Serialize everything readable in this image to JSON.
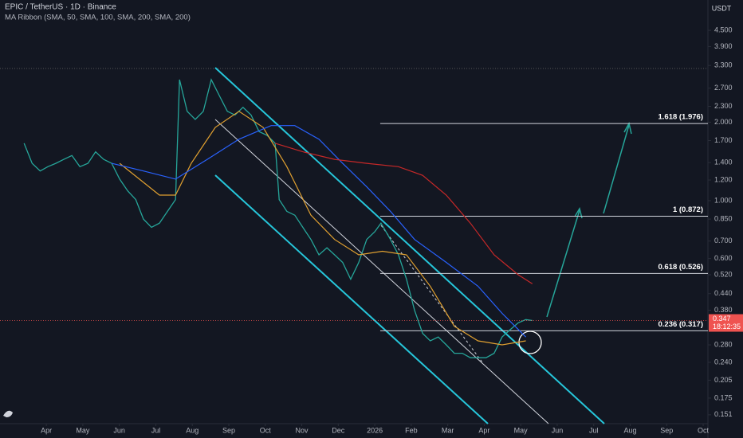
{
  "chart_data": {
    "type": "line",
    "title": "EPIC / TetherUS · 1D · Binance",
    "subtitle": "MA Ribbon (SMA, 50, SMA, 100, SMA, 200, SMA, 200)",
    "y_axis_label": "USDT",
    "log_scale": true,
    "xlim": [
      -1.27,
      18.13
    ],
    "ylim": [
      0.132,
      5.88
    ],
    "xticks": [
      {
        "value": 0,
        "label": "Apr"
      },
      {
        "value": 1,
        "label": "May"
      },
      {
        "value": 2,
        "label": "Jun"
      },
      {
        "value": 3,
        "label": "Jul"
      },
      {
        "value": 4,
        "label": "Aug"
      },
      {
        "value": 5,
        "label": "Sep"
      },
      {
        "value": 6,
        "label": "Oct"
      },
      {
        "value": 7,
        "label": "Nov"
      },
      {
        "value": 8,
        "label": "Dec"
      },
      {
        "value": 9,
        "label": "2026"
      },
      {
        "value": 10,
        "label": "Feb"
      },
      {
        "value": 11,
        "label": "Mar"
      },
      {
        "value": 12,
        "label": "Apr"
      },
      {
        "value": 13,
        "label": "May"
      },
      {
        "value": 14,
        "label": "Jun"
      },
      {
        "value": 15,
        "label": "Jul"
      },
      {
        "value": 16,
        "label": "Aug"
      },
      {
        "value": 17,
        "label": "Sep"
      },
      {
        "value": 18,
        "label": "Oct"
      }
    ],
    "yticks": [
      {
        "value": 4.5,
        "label": "4.500"
      },
      {
        "value": 3.9,
        "label": "3.900"
      },
      {
        "value": 3.3,
        "label": "3.300"
      },
      {
        "value": 2.7,
        "label": "2.700"
      },
      {
        "value": 2.3,
        "label": "2.300"
      },
      {
        "value": 2.0,
        "label": "2.000"
      },
      {
        "value": 1.7,
        "label": "1.700"
      },
      {
        "value": 1.4,
        "label": "1.400"
      },
      {
        "value": 1.2,
        "label": "1.200"
      },
      {
        "value": 1.0,
        "label": "1.000"
      },
      {
        "value": 0.85,
        "label": "0.850"
      },
      {
        "value": 0.7,
        "label": "0.700"
      },
      {
        "value": 0.6,
        "label": "0.600"
      },
      {
        "value": 0.52,
        "label": "0.520"
      },
      {
        "value": 0.44,
        "label": "0.440"
      },
      {
        "value": 0.38,
        "label": "0.380"
      },
      {
        "value": 0.28,
        "label": "0.280"
      },
      {
        "value": 0.24,
        "label": "0.240"
      },
      {
        "value": 0.205,
        "label": "0.205"
      },
      {
        "value": 0.175,
        "label": "0.175"
      },
      {
        "value": 0.151,
        "label": "0.151"
      }
    ],
    "series": [
      {
        "color": "#26a69a",
        "width": 1.3,
        "x": [
          -0.61,
          -0.39,
          -0.17,
          0.04,
          0.26,
          0.48,
          0.7,
          0.92,
          1.14,
          1.35,
          1.57,
          1.79,
          2.01,
          2.23,
          2.45,
          2.66,
          2.88,
          3.1,
          3.32,
          3.54,
          3.65,
          3.86,
          4.08,
          4.3,
          4.52,
          4.74,
          4.96,
          5.17,
          5.39,
          5.61,
          5.83,
          6.05,
          6.27,
          6.38,
          6.59,
          6.81,
          7.03,
          7.25,
          7.47,
          7.69,
          7.9,
          8.12,
          8.34,
          8.56,
          8.78,
          9.0,
          9.17,
          9.43,
          9.65,
          9.87,
          10.09,
          10.31,
          10.52,
          10.74,
          10.96,
          11.18,
          11.4,
          11.62,
          11.83,
          12.05,
          12.27,
          12.49,
          12.71,
          12.93,
          13.14,
          13.32
        ],
        "values": [
          1.66,
          1.39,
          1.3,
          1.35,
          1.39,
          1.44,
          1.49,
          1.35,
          1.39,
          1.54,
          1.44,
          1.39,
          1.21,
          1.09,
          1.01,
          0.85,
          0.79,
          0.82,
          0.91,
          1.01,
          2.91,
          2.2,
          2.05,
          2.2,
          2.91,
          2.53,
          2.2,
          2.13,
          2.28,
          2.13,
          1.84,
          1.78,
          1.66,
          1.01,
          0.91,
          0.88,
          0.79,
          0.71,
          0.62,
          0.66,
          0.62,
          0.58,
          0.5,
          0.58,
          0.71,
          0.76,
          0.82,
          0.71,
          0.62,
          0.5,
          0.38,
          0.31,
          0.29,
          0.3,
          0.28,
          0.26,
          0.26,
          0.25,
          0.25,
          0.25,
          0.26,
          0.3,
          0.32,
          0.34,
          0.35,
          0.347
        ]
      },
      {
        "color": "#e0a030",
        "width": 1.2,
        "x": [
          2.01,
          3.1,
          3.54,
          3.97,
          4.63,
          5.28,
          5.94,
          6.59,
          7.25,
          7.9,
          8.56,
          9.21,
          9.87,
          10.52,
          11.18,
          11.83,
          12.49,
          13.14
        ],
        "values": [
          1.39,
          1.05,
          1.05,
          1.39,
          1.91,
          2.2,
          1.91,
          1.35,
          0.88,
          0.71,
          0.62,
          0.64,
          0.62,
          0.47,
          0.33,
          0.29,
          0.28,
          0.29
        ]
      },
      {
        "color": "#2962ff",
        "width": 1.2,
        "x": [
          1.79,
          2.66,
          3.54,
          4.41,
          5.28,
          6.16,
          6.81,
          7.47,
          8.12,
          8.78,
          9.43,
          10.09,
          10.96,
          11.83,
          12.49,
          13.14
        ],
        "values": [
          1.39,
          1.3,
          1.21,
          1.44,
          1.72,
          1.94,
          1.94,
          1.72,
          1.39,
          1.13,
          0.91,
          0.71,
          0.58,
          0.47,
          0.37,
          0.3
        ]
      },
      {
        "color": "#c62828",
        "width": 1.2,
        "x": [
          6.27,
          7.03,
          7.9,
          8.78,
          9.65,
          10.31,
          10.96,
          11.62,
          12.27,
          12.93,
          13.32
        ],
        "values": [
          1.66,
          1.54,
          1.44,
          1.39,
          1.35,
          1.25,
          1.05,
          0.82,
          0.62,
          0.52,
          0.48
        ]
      }
    ],
    "fib_levels": [
      {
        "label": "1.618 (1.976)",
        "value": 1.976
      },
      {
        "label": "1 (0.872)",
        "value": 0.872
      },
      {
        "label": "0.618 (0.526)",
        "value": 0.526
      },
      {
        "label": "0.236 (0.317)",
        "value": 0.317
      }
    ],
    "fib_x_start": 9.15,
    "last_price": {
      "value": 0.347,
      "label": "0.347",
      "countdown": "18:12:35"
    }
  }
}
